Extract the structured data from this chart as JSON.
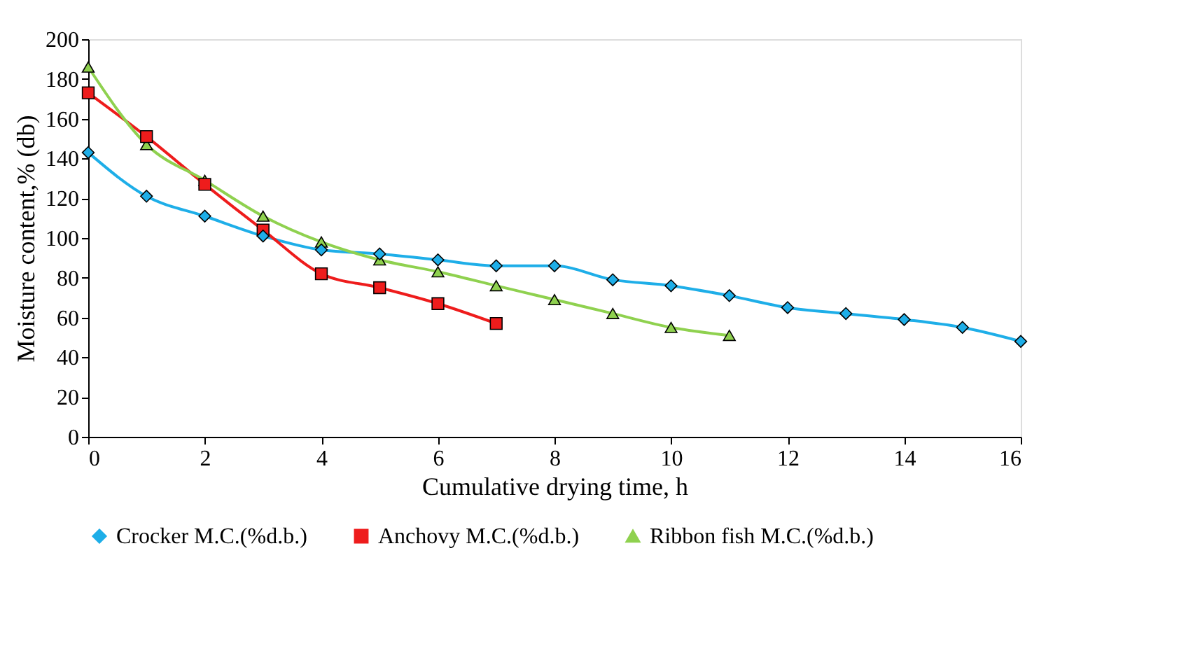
{
  "chart_data": {
    "type": "line",
    "xlabel": "Cumulative drying time, h",
    "ylabel": "Moisture content,% (db)",
    "xlim": [
      0,
      16
    ],
    "xticks": [
      0,
      2,
      4,
      6,
      8,
      10,
      12,
      14,
      16
    ],
    "ylim": [
      0,
      200
    ],
    "yticks": [
      0,
      20,
      40,
      60,
      80,
      100,
      120,
      140,
      160,
      180,
      200
    ],
    "grid": false,
    "legend": "bottom",
    "line_style": "solid",
    "series": [
      {
        "name": "Crocker M.C.(%d.b.)",
        "color": "#1eaee8",
        "marker": "diamond",
        "x": [
          0,
          1,
          2,
          3,
          4,
          5,
          6,
          7,
          8,
          9,
          10,
          11,
          12,
          13,
          14,
          15,
          16
        ],
        "values": [
          143,
          121,
          111,
          101,
          94,
          92,
          89,
          86,
          86,
          79,
          76,
          71,
          65,
          62,
          59,
          55,
          48
        ]
      },
      {
        "name": "Anchovy M.C.(%d.b.)",
        "color": "#ee1c1c",
        "marker": "square",
        "x": [
          0,
          1,
          2,
          3,
          4,
          5,
          6,
          7
        ],
        "values": [
          173,
          151,
          127,
          104,
          82,
          75,
          67,
          57
        ]
      },
      {
        "name": "Ribbon fish M.C.(%d.b.)",
        "color": "#8fd14f",
        "marker": "triangle",
        "x": [
          0,
          1,
          2,
          3,
          4,
          5,
          6,
          7,
          8,
          9,
          10,
          11
        ],
        "values": [
          186,
          147,
          129,
          111,
          98,
          89,
          83,
          76,
          69,
          62,
          55,
          51
        ]
      }
    ]
  }
}
